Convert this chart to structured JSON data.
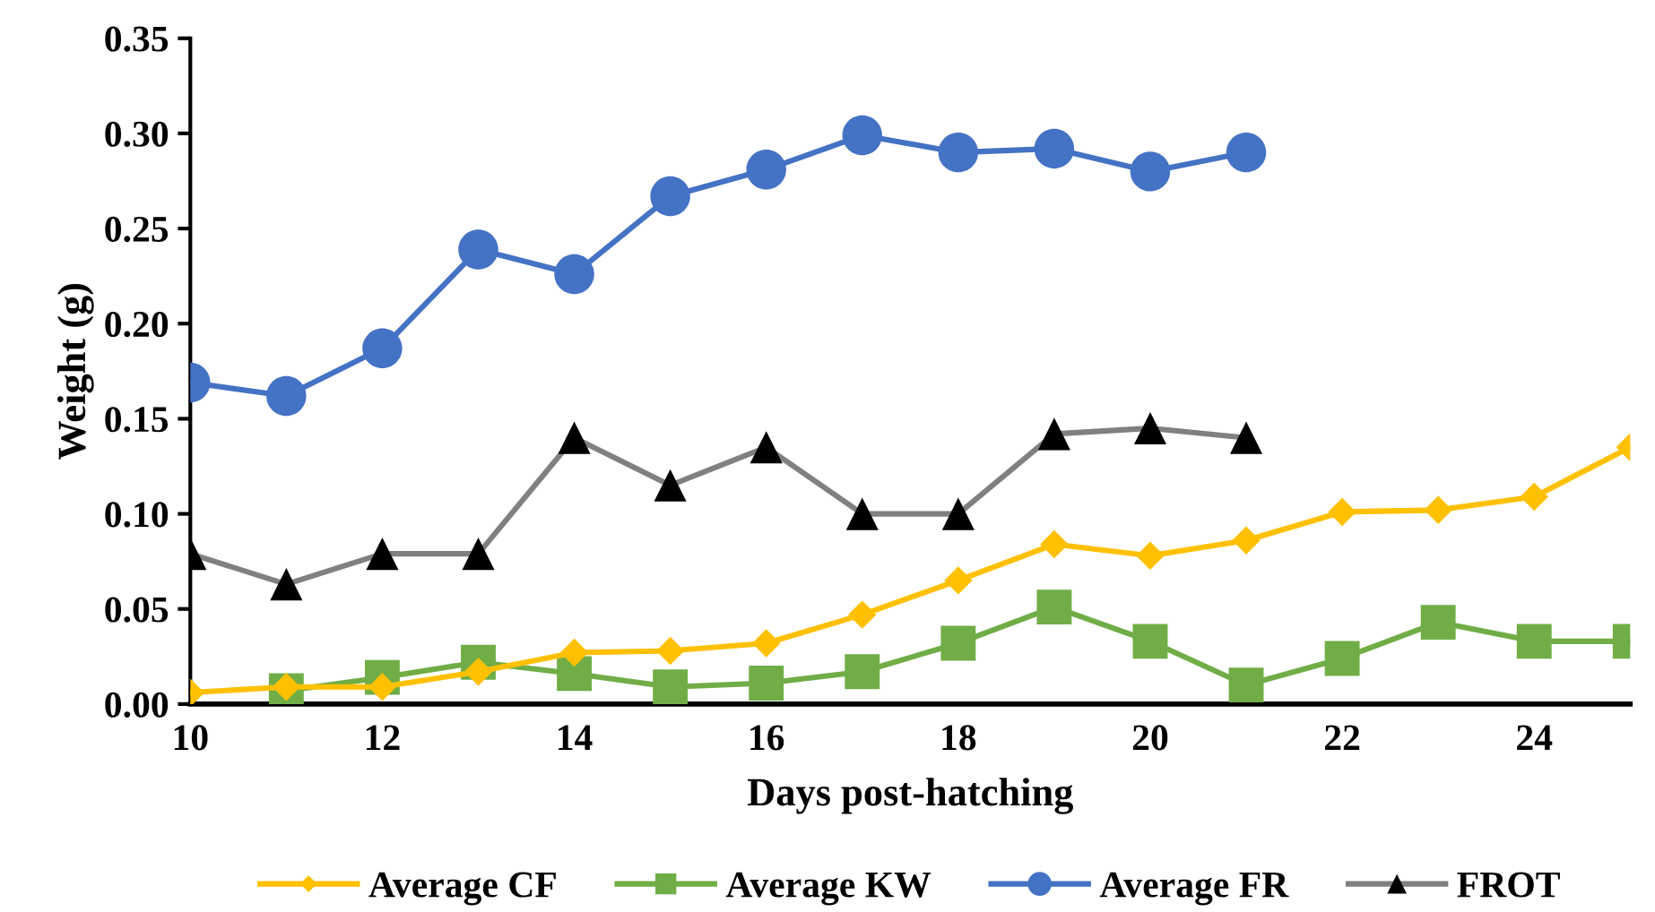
{
  "chart_data": {
    "type": "line",
    "xlabel": "Days post-hatching",
    "ylabel": "Weight (g)",
    "xlim": [
      10,
      25
    ],
    "xticks": [
      10,
      12,
      14,
      16,
      18,
      20,
      22,
      24
    ],
    "ylim": [
      0,
      0.35
    ],
    "yticks": [
      {
        "value": 0,
        "label": "0.00"
      },
      0.05,
      {
        "value": 0.1,
        "label": "0.10"
      },
      0.15,
      {
        "value": 0.2,
        "label": "0.20"
      },
      0.25,
      {
        "value": 0.3,
        "label": "0.30"
      },
      0.35
    ],
    "grid": false,
    "legend": "bottom",
    "line_style": "solid",
    "series": [
      {
        "name": "Average CF",
        "color": "#ffc000",
        "marker": "diamond",
        "x": [
          10,
          11,
          12,
          13,
          14,
          15,
          16,
          17,
          18,
          19,
          20,
          21,
          22,
          23,
          24,
          25
        ],
        "values": [
          0.006,
          0.009,
          0.009,
          0.017,
          0.027,
          0.028,
          0.032,
          0.047,
          0.065,
          0.084,
          0.078,
          0.086,
          0.101,
          0.102,
          0.109,
          0.135
        ]
      },
      {
        "name": "Average KW",
        "color": "#70ad47",
        "marker": "square",
        "x": [
          11,
          12,
          13,
          14,
          15,
          16,
          17,
          18,
          19,
          20,
          21,
          22,
          23,
          24,
          25
        ],
        "values": [
          0.007,
          0.014,
          0.022,
          0.016,
          0.009,
          0.011,
          0.017,
          0.032,
          0.051,
          0.033,
          0.01,
          0.024,
          0.043,
          0.033,
          0.033
        ]
      },
      {
        "name": "Average FR",
        "color": "#4472c4",
        "marker": "circle",
        "x": [
          10,
          11,
          12,
          13,
          14,
          15,
          16,
          17,
          18,
          19,
          20,
          21
        ],
        "values": [
          0.169,
          0.162,
          0.187,
          0.239,
          0.226,
          0.267,
          0.281,
          0.299,
          0.29,
          0.292,
          0.28,
          0.29
        ]
      },
      {
        "name": "FROT",
        "color": "#808080",
        "marker": "triangle",
        "colors": [
          "#000000",
          "#000000",
          "#000000",
          "#000000",
          "#000000",
          "#000000",
          "#000000",
          "#000000",
          "#000000",
          "#000000",
          "#000000",
          "#000000"
        ],
        "x": [
          10,
          11,
          12,
          13,
          14,
          15,
          16,
          17,
          18,
          19,
          20,
          21
        ],
        "values": [
          0.079,
          0.063,
          0.079,
          0.079,
          0.14,
          0.115,
          0.135,
          0.1,
          0.1,
          0.142,
          0.145,
          0.14
        ]
      }
    ]
  }
}
